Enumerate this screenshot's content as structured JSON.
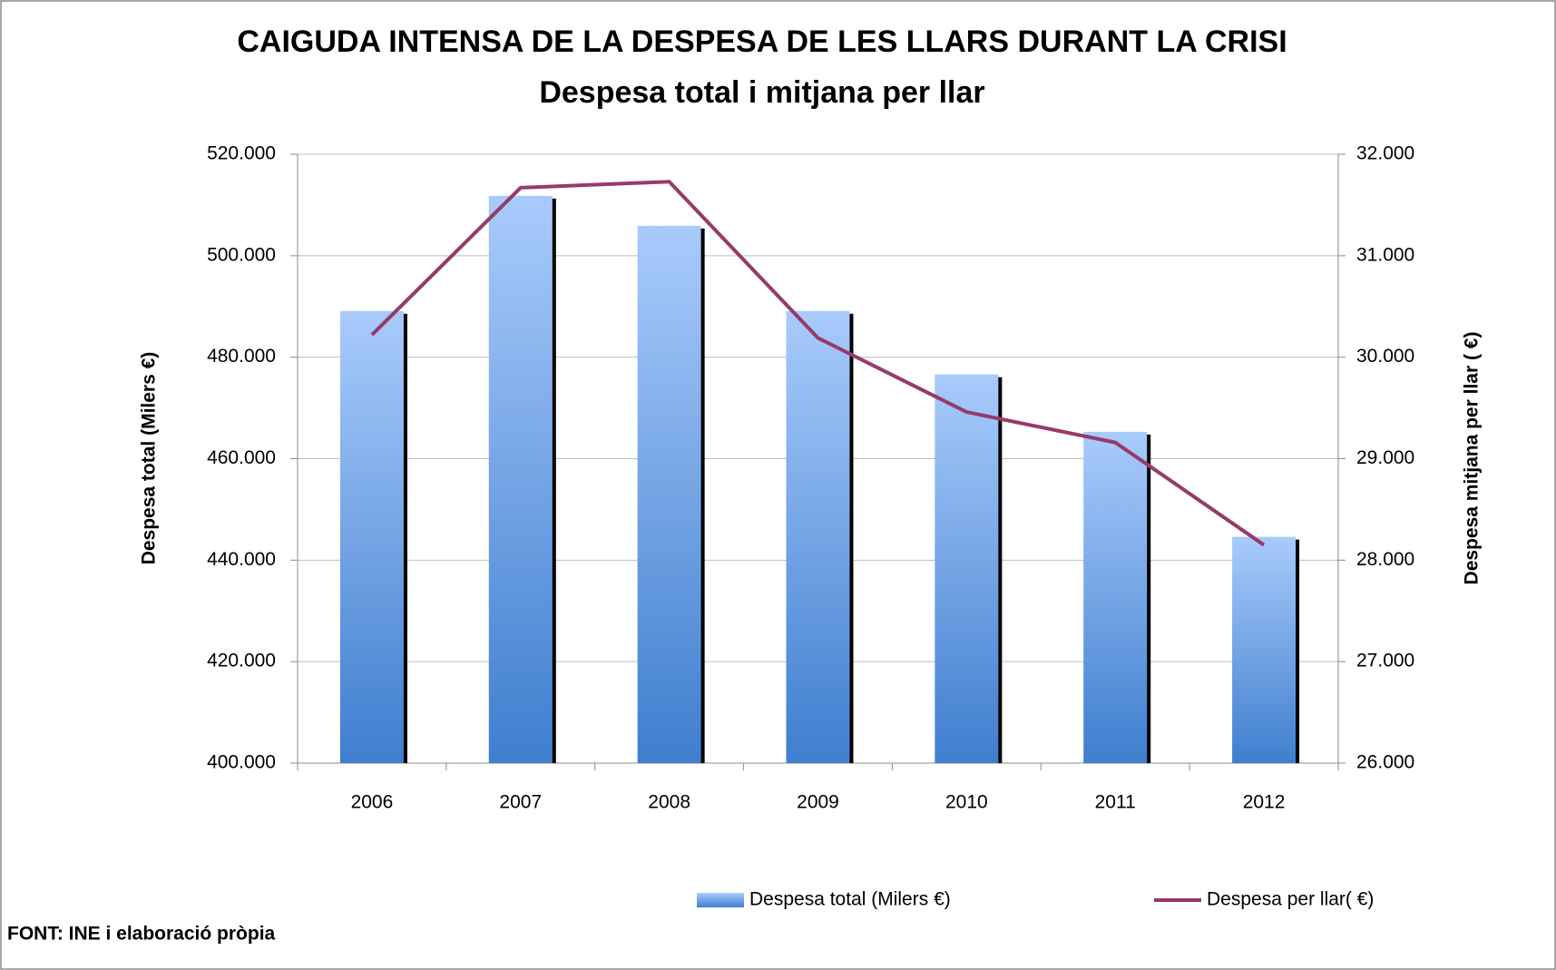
{
  "chart_data": {
    "type": "bar",
    "title": "CAIGUDA INTENSA DE LA DESPESA DE LES LLARS DURANT LA CRISI",
    "subtitle": "Despesa total i mitjana per llar",
    "ylabel": "Despesa total (Milers  €)",
    "y2label": "Despesa mitjana per llar ( €)",
    "source": "FONT: INE i elaboració pròpia",
    "categories": [
      "2006",
      "2007",
      "2008",
      "2009",
      "2010",
      "2011",
      "2012"
    ],
    "series": [
      {
        "name": "Despesa total (Milers €)",
        "type": "bar",
        "color": "#4a86d4",
        "values": [
          489100,
          511800,
          505900,
          489100,
          476600,
          465300,
          444600
        ]
      },
      {
        "name": "Despesa per llar( €)",
        "type": "line",
        "axis": "y2",
        "color": "#953b6a",
        "values": [
          30220,
          31670,
          31730,
          30190,
          29460,
          29160,
          28150
        ]
      }
    ],
    "ylim": [
      400000,
      520000
    ],
    "yticks": [
      {
        "value": 400000,
        "label": "400.000"
      },
      {
        "value": 420000,
        "label": "420.000"
      },
      {
        "value": 440000,
        "label": "440.000"
      },
      {
        "value": 460000,
        "label": "460.000"
      },
      {
        "value": 480000,
        "label": "480.000"
      },
      {
        "value": 500000,
        "label": "500.000"
      },
      {
        "value": 520000,
        "label": "520.000"
      }
    ],
    "y2lim": [
      26000,
      32000
    ],
    "y2ticks": [
      {
        "value": 26000,
        "label": "26.000"
      },
      {
        "value": 27000,
        "label": "27.000"
      },
      {
        "value": 28000,
        "label": "28.000"
      },
      {
        "value": 29000,
        "label": "29.000"
      },
      {
        "value": 30000,
        "label": "30.000"
      },
      {
        "value": 31000,
        "label": "31.000"
      },
      {
        "value": 32000,
        "label": "32.000"
      }
    ],
    "grid": true,
    "legend": "bottom-right"
  }
}
